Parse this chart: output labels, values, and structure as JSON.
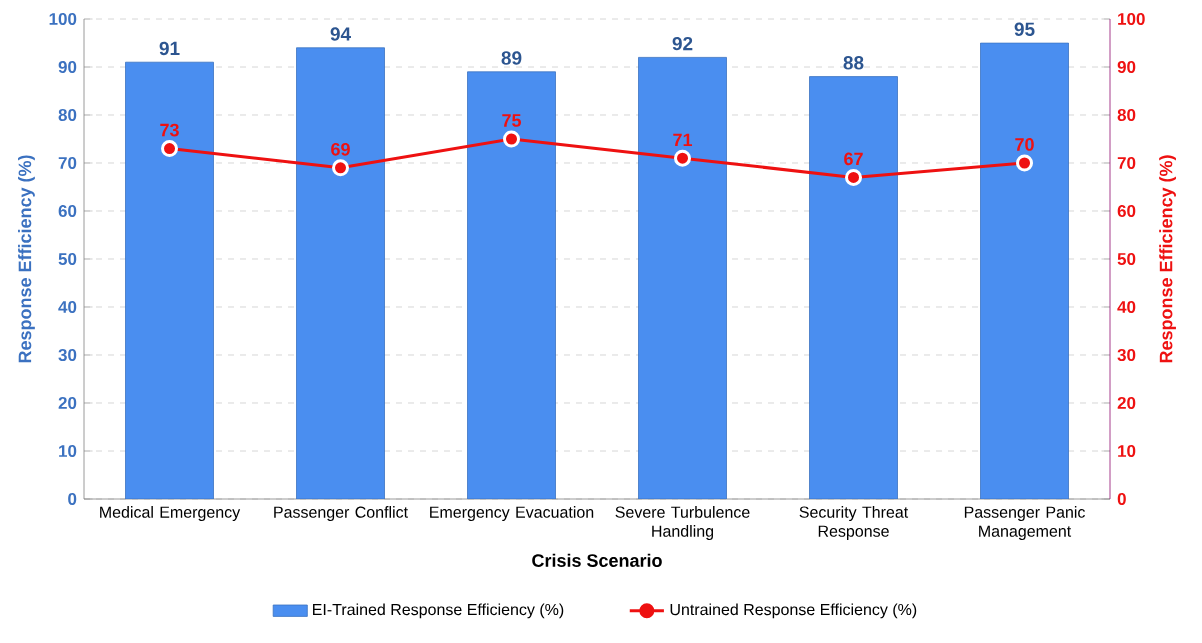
{
  "chart_data": {
    "type": "bar",
    "xlabel": "Crisis Scenario",
    "ylabel": "Response Efficiency (%)",
    "y2label": "Response Efficiency (%)",
    "categories": [
      "Medical Emergency",
      "Passenger Conflict",
      "Emergency Evacuation",
      "Severe Turbulence Handling",
      "Security Threat Response",
      "Passenger Panic Management"
    ],
    "series": [
      {
        "name": "EI-Trained Response Efficiency (%)",
        "color": "#4a8ef0",
        "values": [
          91,
          94,
          89,
          92,
          88,
          95
        ]
      },
      {
        "name": "Untrained Response Efficiency (%)",
        "type": "line",
        "axis": "y2",
        "color": "#ee1111",
        "values": [
          73,
          69,
          75,
          71,
          67,
          70
        ]
      }
    ],
    "ylim": [
      0,
      100
    ],
    "yticks": [
      0,
      10,
      20,
      30,
      40,
      50,
      60,
      70,
      80,
      90,
      100
    ],
    "y2lim": [
      0,
      100
    ],
    "y2ticks": [
      0,
      10,
      20,
      30,
      40,
      50,
      60,
      70,
      80,
      90,
      100
    ],
    "grid": "y",
    "legend": "bottom",
    "data_labels": true,
    "marker": "circle",
    "line_style": "solid"
  }
}
